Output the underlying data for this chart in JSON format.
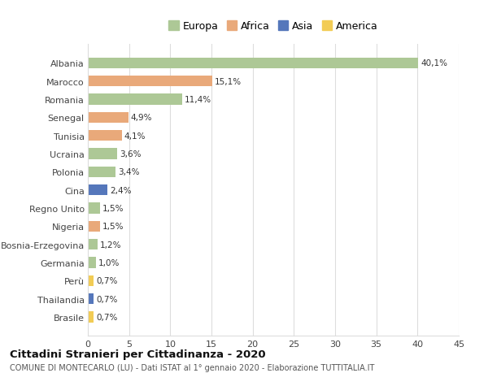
{
  "title": "Cittadini Stranieri per Cittadinanza - 2020",
  "subtitle": "COMUNE DI MONTECARLO (LU) - Dati ISTAT al 1° gennaio 2020 - Elaborazione TUTTITALIA.IT",
  "countries": [
    "Albania",
    "Marocco",
    "Romania",
    "Senegal",
    "Tunisia",
    "Ucraina",
    "Polonia",
    "Cina",
    "Regno Unito",
    "Nigeria",
    "Bosnia-Erzegovina",
    "Germania",
    "Perù",
    "Thailandia",
    "Brasile"
  ],
  "values": [
    40.1,
    15.1,
    11.4,
    4.9,
    4.1,
    3.6,
    3.4,
    2.4,
    1.5,
    1.5,
    1.2,
    1.0,
    0.7,
    0.7,
    0.7
  ],
  "labels": [
    "40,1%",
    "15,1%",
    "11,4%",
    "4,9%",
    "4,1%",
    "3,6%",
    "3,4%",
    "2,4%",
    "1,5%",
    "1,5%",
    "1,2%",
    "1,0%",
    "0,7%",
    "0,7%",
    "0,7%"
  ],
  "continents": [
    "Europa",
    "Africa",
    "Europa",
    "Africa",
    "Africa",
    "Europa",
    "Europa",
    "Asia",
    "Europa",
    "Africa",
    "Europa",
    "Europa",
    "America",
    "Asia",
    "America"
  ],
  "colors": {
    "Europa": "#adc896",
    "Africa": "#e9a97a",
    "Asia": "#5577bb",
    "America": "#f2cc55"
  },
  "background_color": "#ffffff",
  "grid_color": "#dddddd",
  "xlim": [
    0,
    45
  ],
  "xticks": [
    0,
    5,
    10,
    15,
    20,
    25,
    30,
    35,
    40,
    45
  ],
  "legend_order": [
    "Europa",
    "Africa",
    "Asia",
    "America"
  ]
}
